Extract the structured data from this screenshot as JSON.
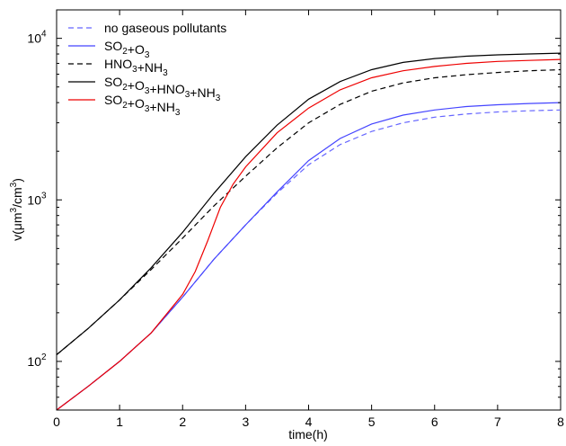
{
  "chart_data": {
    "type": "line",
    "title": "",
    "xlabel": "time(h)",
    "ylabel_parts": {
      "base": "v(",
      "mu": "μ",
      "m": "m",
      "sup1": "3",
      "slash": "/cm",
      "sup2": "3",
      "close": ")"
    },
    "xlim": [
      0,
      8
    ],
    "ylim": [
      50,
      15000
    ],
    "yscale": "log",
    "xticks": [
      "0",
      "1",
      "2",
      "3",
      "4",
      "5",
      "6",
      "7",
      "8"
    ],
    "yticks": [
      {
        "value": 100,
        "base": "10",
        "exp": "2"
      },
      {
        "value": 1000,
        "base": "10",
        "exp": "3"
      },
      {
        "value": 10000,
        "base": "10",
        "exp": "4"
      }
    ],
    "grid": false,
    "legend_position": "top-left",
    "series": [
      {
        "key": "none",
        "label_parts": [
          {
            "t": "no gaseous pollutants"
          }
        ],
        "color": "#6666ff",
        "dash": "dashed",
        "x": [
          0,
          0.5,
          1,
          1.5,
          2,
          2.5,
          3,
          3.5,
          4,
          4.5,
          5,
          5.5,
          6,
          6.5,
          7,
          7.5,
          8
        ],
        "y": [
          50,
          70,
          100,
          150,
          250,
          430,
          700,
          1100,
          1650,
          2200,
          2650,
          3000,
          3250,
          3400,
          3500,
          3560,
          3600
        ]
      },
      {
        "key": "so2o3",
        "label_parts": [
          {
            "t": "SO"
          },
          {
            "t": "2",
            "sub": true
          },
          {
            "t": "+O"
          },
          {
            "t": "3",
            "sub": true
          }
        ],
        "color": "#4444ff",
        "dash": "solid",
        "x": [
          0,
          0.5,
          1,
          1.5,
          2,
          2.5,
          3,
          3.5,
          4,
          4.5,
          5,
          5.5,
          6,
          6.5,
          7,
          7.5,
          8
        ],
        "y": [
          50,
          70,
          100,
          150,
          250,
          430,
          700,
          1120,
          1750,
          2400,
          2950,
          3350,
          3600,
          3780,
          3880,
          3950,
          4000
        ]
      },
      {
        "key": "hno3nh3",
        "label_parts": [
          {
            "t": "HNO"
          },
          {
            "t": "3",
            "sub": true
          },
          {
            "t": "+NH"
          },
          {
            "t": "3",
            "sub": true
          }
        ],
        "color": "#000000",
        "dash": "dashed",
        "x": [
          0,
          0.5,
          1,
          1.5,
          2,
          2.5,
          3,
          3.5,
          4,
          4.5,
          5,
          5.5,
          6,
          6.5,
          7,
          7.5,
          8
        ],
        "y": [
          110,
          160,
          240,
          370,
          580,
          920,
          1400,
          2100,
          3000,
          3900,
          4700,
          5300,
          5700,
          5950,
          6150,
          6300,
          6400
        ]
      },
      {
        "key": "all",
        "label_parts": [
          {
            "t": "SO"
          },
          {
            "t": "2",
            "sub": true
          },
          {
            "t": "+O"
          },
          {
            "t": "3",
            "sub": true
          },
          {
            "t": "+HNO"
          },
          {
            "t": "3",
            "sub": true
          },
          {
            "t": "+NH"
          },
          {
            "t": "3",
            "sub": true
          }
        ],
        "color": "#000000",
        "dash": "solid",
        "x": [
          0,
          0.5,
          1,
          1.5,
          2,
          2.5,
          3,
          3.5,
          4,
          4.5,
          5,
          5.5,
          6,
          6.5,
          7,
          7.5,
          8
        ],
        "y": [
          110,
          160,
          240,
          380,
          630,
          1100,
          1850,
          2900,
          4200,
          5400,
          6400,
          7100,
          7500,
          7750,
          7900,
          8000,
          8100
        ]
      },
      {
        "key": "so2o3nh3",
        "label_parts": [
          {
            "t": "SO"
          },
          {
            "t": "2",
            "sub": true
          },
          {
            "t": "+O"
          },
          {
            "t": "3",
            "sub": true
          },
          {
            "t": "+NH"
          },
          {
            "t": "3",
            "sub": true
          }
        ],
        "color": "#ee0000",
        "dash": "solid",
        "x": [
          0,
          0.5,
          1,
          1.5,
          2,
          2.2,
          2.4,
          2.6,
          2.8,
          3,
          3.5,
          4,
          4.5,
          5,
          5.5,
          6,
          6.5,
          7,
          7.5,
          8
        ],
        "y": [
          50,
          70,
          100,
          150,
          260,
          360,
          560,
          900,
          1250,
          1600,
          2600,
          3700,
          4800,
          5700,
          6300,
          6700,
          7000,
          7200,
          7300,
          7400
        ]
      }
    ]
  }
}
